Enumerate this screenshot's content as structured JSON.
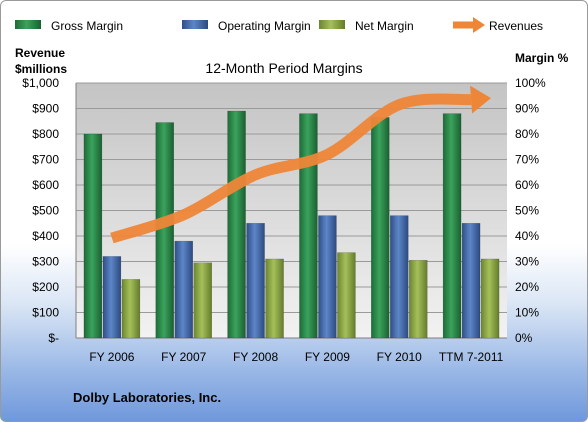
{
  "chart_data": {
    "type": "bar",
    "title": "12-Month Period Margins",
    "left_axis_label": [
      "Revenue",
      "$millions"
    ],
    "right_axis_label": "Margin %",
    "categories": [
      "FY 2006",
      "FY 2007",
      "FY 2008",
      "FY 2009",
      "FY 2010",
      "TTM 7-2011"
    ],
    "left_ticks": [
      "$-",
      "$100",
      "$200",
      "$300",
      "$400",
      "$500",
      "$600",
      "$700",
      "$800",
      "$900",
      "$1,000"
    ],
    "right_ticks": [
      "0%",
      "10%",
      "20%",
      "30%",
      "40%",
      "50%",
      "60%",
      "70%",
      "80%",
      "90%",
      "100%"
    ],
    "left_ylim": [
      0,
      1000
    ],
    "right_ylim": [
      0,
      100
    ],
    "grid": true,
    "legend_position": "top",
    "series": [
      {
        "name": "Gross Margin",
        "type": "bar",
        "axis": "right",
        "color": "#2f8f4e",
        "values": [
          80,
          84.5,
          89,
          88,
          86.5,
          88
        ]
      },
      {
        "name": "Operating Margin",
        "type": "bar",
        "axis": "right",
        "color": "#4a70b0",
        "values": [
          32,
          38,
          45,
          48,
          48,
          45
        ]
      },
      {
        "name": "Net Margin",
        "type": "bar",
        "axis": "right",
        "color": "#8ea844",
        "values": [
          23,
          29.5,
          31,
          33.5,
          30.5,
          31
        ]
      },
      {
        "name": "Revenues",
        "type": "line",
        "axis": "left",
        "color": "#ee8638",
        "values": [
          392,
          483,
          640,
          720,
          915,
          935
        ]
      }
    ],
    "footer": "Dolby Laboratories, Inc."
  }
}
